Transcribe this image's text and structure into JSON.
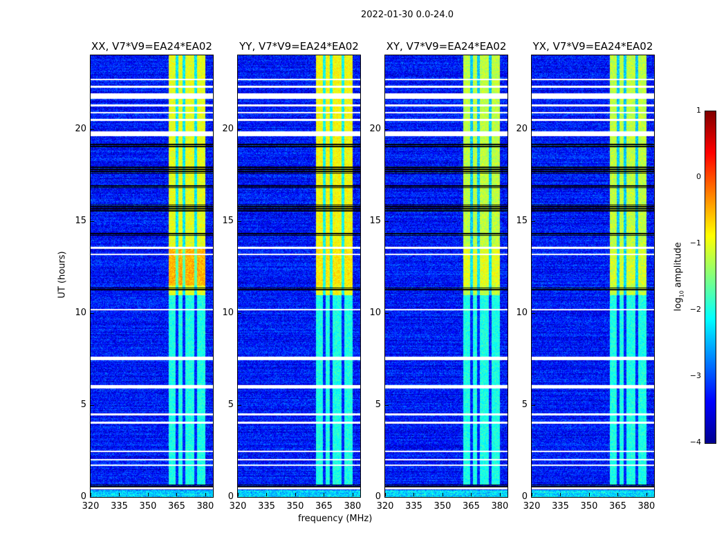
{
  "chart_data": {
    "type": "heatmap",
    "title": "2022-01-30 0.0-24.0",
    "xlabel": "frequency (MHz)",
    "ylabel": "UT (hours)",
    "xlim": [
      320,
      384
    ],
    "ylim": [
      0,
      24
    ],
    "xticks": [
      320,
      335,
      350,
      365,
      380
    ],
    "yticks": [
      0,
      5,
      10,
      15,
      20
    ],
    "panels": [
      {
        "title": "XX, V7*V9=EA24*EA02",
        "band_level_high": -1.0,
        "peak_level": -0.5
      },
      {
        "title": "YY, V7*V9=EA24*EA02",
        "band_level_high": -0.9,
        "peak_level": -0.8
      },
      {
        "title": "XY, V7*V9=EA24*EA02",
        "band_level_high": -1.2,
        "peak_level": -1.0
      },
      {
        "title": "YX, V7*V9=EA24*EA02",
        "band_level_high": -1.2,
        "peak_level": -1.1
      }
    ],
    "background_level": -3.3,
    "band_level_low": -2.0,
    "rfi_band_mhz": [
      360.5,
      380
    ],
    "rfi_gaps_mhz": [
      365,
      368.6,
      374.8
    ],
    "peak_hours": [
      11.5,
      13.5
    ],
    "band_bright_from_hour": 11,
    "flagged_white_hours": [
      22.7,
      22.3,
      21.9,
      21.8,
      21.7,
      21.3,
      20.9,
      20.5,
      19.75,
      13.55,
      13.2,
      10.2,
      7.6,
      7.5,
      6.05,
      5.95,
      4.5,
      4.05,
      2.5,
      2.05,
      1.75,
      0.5
    ],
    "flagged_black_hours": [
      [
        17.6,
        18.0
      ],
      [
        15.5,
        15.9
      ],
      [
        0.4,
        0.7
      ],
      [
        19.0,
        19.2
      ],
      [
        16.8,
        17.0
      ],
      [
        14.2,
        14.4
      ],
      [
        11.2,
        11.4
      ]
    ],
    "colorbar": {
      "label": "log10 amplitude",
      "range": [
        -4,
        1
      ],
      "ticks": [
        "1",
        "0",
        "−1",
        "−2",
        "−3",
        "−4"
      ],
      "tick_values": [
        1,
        0,
        -1,
        -2,
        -3,
        -4
      ]
    }
  }
}
